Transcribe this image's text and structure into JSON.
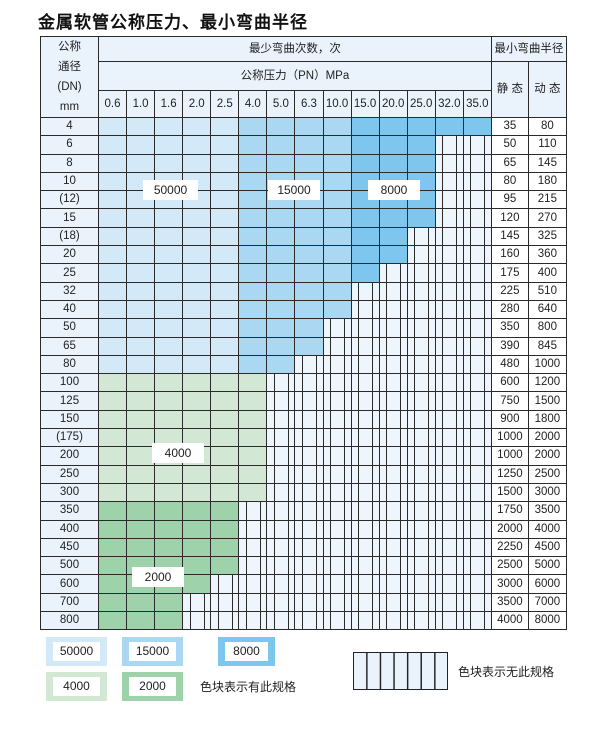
{
  "title": "金属软管公称压力、最小弯曲半径",
  "chart_data": {
    "type": "table",
    "header": {
      "dn_label_lines": [
        "公称",
        "通径",
        "(DN)",
        "mm"
      ],
      "cycles_label": "最少弯曲次数，次",
      "pressure_label": "公称压力（PN）MPa",
      "radius_label": "最小弯曲半径",
      "static_label": "静 态",
      "dynamic_label": "动 态"
    },
    "pressures": [
      "0.6",
      "1.0",
      "1.6",
      "2.0",
      "2.5",
      "4.0",
      "5.0",
      "6.3",
      "10.0",
      "15.0",
      "20.0",
      "25.0",
      "32.0",
      "35.0"
    ],
    "levels": [
      {
        "value": "50000",
        "color": "#d3e9f8"
      },
      {
        "value": "15000",
        "color": "#aad8f3"
      },
      {
        "value": "8000",
        "color": "#7fc6ee"
      },
      {
        "value": "4000",
        "color": "#d2e8d5"
      },
      {
        "value": "2000",
        "color": "#9dd2ab"
      }
    ],
    "rows": [
      {
        "dn": "4",
        "cells": [
          50000,
          50000,
          50000,
          50000,
          50000,
          15000,
          15000,
          15000,
          15000,
          8000,
          8000,
          8000,
          8000,
          8000
        ],
        "static": "35",
        "dynamic": "80"
      },
      {
        "dn": "6",
        "cells": [
          50000,
          50000,
          50000,
          50000,
          50000,
          15000,
          15000,
          15000,
          15000,
          8000,
          8000,
          8000,
          0,
          0
        ],
        "static": "50",
        "dynamic": "110"
      },
      {
        "dn": "8",
        "cells": [
          50000,
          50000,
          50000,
          50000,
          50000,
          15000,
          15000,
          15000,
          15000,
          8000,
          8000,
          8000,
          0,
          0
        ],
        "static": "65",
        "dynamic": "145"
      },
      {
        "dn": "10",
        "cells": [
          50000,
          50000,
          50000,
          50000,
          50000,
          15000,
          15000,
          15000,
          15000,
          8000,
          8000,
          8000,
          0,
          0
        ],
        "static": "80",
        "dynamic": "180"
      },
      {
        "dn": "(12)",
        "cells": [
          50000,
          50000,
          50000,
          50000,
          50000,
          15000,
          15000,
          15000,
          15000,
          8000,
          8000,
          8000,
          0,
          0
        ],
        "static": "95",
        "dynamic": "215"
      },
      {
        "dn": "15",
        "cells": [
          50000,
          50000,
          50000,
          50000,
          50000,
          15000,
          15000,
          15000,
          15000,
          8000,
          8000,
          8000,
          0,
          0
        ],
        "static": "120",
        "dynamic": "270"
      },
      {
        "dn": "(18)",
        "cells": [
          50000,
          50000,
          50000,
          50000,
          50000,
          15000,
          15000,
          15000,
          15000,
          8000,
          8000,
          0,
          0,
          0
        ],
        "static": "145",
        "dynamic": "325"
      },
      {
        "dn": "20",
        "cells": [
          50000,
          50000,
          50000,
          50000,
          50000,
          15000,
          15000,
          15000,
          15000,
          8000,
          8000,
          0,
          0,
          0
        ],
        "static": "160",
        "dynamic": "360"
      },
      {
        "dn": "25",
        "cells": [
          50000,
          50000,
          50000,
          50000,
          50000,
          15000,
          15000,
          15000,
          15000,
          8000,
          0,
          0,
          0,
          0
        ],
        "static": "175",
        "dynamic": "400"
      },
      {
        "dn": "32",
        "cells": [
          50000,
          50000,
          50000,
          50000,
          50000,
          15000,
          15000,
          15000,
          15000,
          0,
          0,
          0,
          0,
          0
        ],
        "static": "225",
        "dynamic": "510"
      },
      {
        "dn": "40",
        "cells": [
          50000,
          50000,
          50000,
          50000,
          50000,
          15000,
          15000,
          15000,
          15000,
          0,
          0,
          0,
          0,
          0
        ],
        "static": "280",
        "dynamic": "640"
      },
      {
        "dn": "50",
        "cells": [
          50000,
          50000,
          50000,
          50000,
          50000,
          15000,
          15000,
          15000,
          0,
          0,
          0,
          0,
          0,
          0
        ],
        "static": "350",
        "dynamic": "800"
      },
      {
        "dn": "65",
        "cells": [
          50000,
          50000,
          50000,
          50000,
          50000,
          15000,
          15000,
          15000,
          0,
          0,
          0,
          0,
          0,
          0
        ],
        "static": "390",
        "dynamic": "845"
      },
      {
        "dn": "80",
        "cells": [
          50000,
          50000,
          50000,
          50000,
          50000,
          15000,
          15000,
          0,
          0,
          0,
          0,
          0,
          0,
          0
        ],
        "static": "480",
        "dynamic": "1000"
      },
      {
        "dn": "100",
        "cells": [
          4000,
          4000,
          4000,
          4000,
          4000,
          4000,
          0,
          0,
          0,
          0,
          0,
          0,
          0,
          0
        ],
        "static": "600",
        "dynamic": "1200"
      },
      {
        "dn": "125",
        "cells": [
          4000,
          4000,
          4000,
          4000,
          4000,
          4000,
          0,
          0,
          0,
          0,
          0,
          0,
          0,
          0
        ],
        "static": "750",
        "dynamic": "1500"
      },
      {
        "dn": "150",
        "cells": [
          4000,
          4000,
          4000,
          4000,
          4000,
          4000,
          0,
          0,
          0,
          0,
          0,
          0,
          0,
          0
        ],
        "static": "900",
        "dynamic": "1800"
      },
      {
        "dn": "(175)",
        "cells": [
          4000,
          4000,
          4000,
          4000,
          4000,
          4000,
          0,
          0,
          0,
          0,
          0,
          0,
          0,
          0
        ],
        "static": "1000",
        "dynamic": "2000"
      },
      {
        "dn": "200",
        "cells": [
          4000,
          4000,
          4000,
          4000,
          4000,
          4000,
          0,
          0,
          0,
          0,
          0,
          0,
          0,
          0
        ],
        "static": "1000",
        "dynamic": "2000"
      },
      {
        "dn": "250",
        "cells": [
          4000,
          4000,
          4000,
          4000,
          4000,
          4000,
          0,
          0,
          0,
          0,
          0,
          0,
          0,
          0
        ],
        "static": "1250",
        "dynamic": "2500"
      },
      {
        "dn": "300",
        "cells": [
          4000,
          4000,
          4000,
          4000,
          4000,
          4000,
          0,
          0,
          0,
          0,
          0,
          0,
          0,
          0
        ],
        "static": "1500",
        "dynamic": "3000"
      },
      {
        "dn": "350",
        "cells": [
          2000,
          2000,
          2000,
          2000,
          2000,
          0,
          0,
          0,
          0,
          0,
          0,
          0,
          0,
          0
        ],
        "static": "1750",
        "dynamic": "3500"
      },
      {
        "dn": "400",
        "cells": [
          2000,
          2000,
          2000,
          2000,
          2000,
          0,
          0,
          0,
          0,
          0,
          0,
          0,
          0,
          0
        ],
        "static": "2000",
        "dynamic": "4000"
      },
      {
        "dn": "450",
        "cells": [
          2000,
          2000,
          2000,
          2000,
          2000,
          0,
          0,
          0,
          0,
          0,
          0,
          0,
          0,
          0
        ],
        "static": "2250",
        "dynamic": "4500"
      },
      {
        "dn": "500",
        "cells": [
          2000,
          2000,
          2000,
          2000,
          2000,
          0,
          0,
          0,
          0,
          0,
          0,
          0,
          0,
          0
        ],
        "static": "2500",
        "dynamic": "5000"
      },
      {
        "dn": "600",
        "cells": [
          2000,
          2000,
          2000,
          2000,
          0,
          0,
          0,
          0,
          0,
          0,
          0,
          0,
          0,
          0
        ],
        "static": "3000",
        "dynamic": "6000"
      },
      {
        "dn": "700",
        "cells": [
          2000,
          2000,
          2000,
          0,
          0,
          0,
          0,
          0,
          0,
          0,
          0,
          0,
          0,
          0
        ],
        "static": "3500",
        "dynamic": "7000"
      },
      {
        "dn": "800",
        "cells": [
          2000,
          2000,
          2000,
          0,
          0,
          0,
          0,
          0,
          0,
          0,
          0,
          0,
          0,
          0
        ],
        "static": "4000",
        "dynamic": "8000"
      }
    ]
  },
  "legend": {
    "available_text": "色块表示有此规格",
    "unavailable_text": "色块表示无此规格"
  }
}
